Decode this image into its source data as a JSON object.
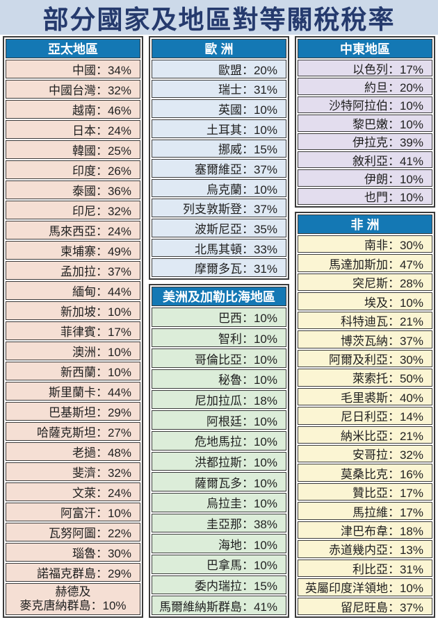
{
  "title": "部分國家及地區對等關稅稅率",
  "colors": {
    "title_bg": "#ccd9e9",
    "title_text": "#253a6d",
    "header_bg": "#1478b4",
    "header_text": "#ffffff",
    "row_text": "#1f1f1f",
    "border": "#3a3a3a"
  },
  "chart_data": {
    "type": "table",
    "title": "部分國家及地區對等關稅稅率",
    "value_unit": "%",
    "value_separator": "：",
    "sections": [
      {
        "id": "asia-pacific",
        "name": "亞太地區",
        "column": 0,
        "row_bg": "#f5dfd4",
        "entries": [
          [
            "中國",
            34
          ],
          [
            "中國台灣",
            32
          ],
          [
            "越南",
            46
          ],
          [
            "日本",
            24
          ],
          [
            "韓國",
            25
          ],
          [
            "印度",
            26
          ],
          [
            "泰國",
            36
          ],
          [
            "印尼",
            32
          ],
          [
            "馬來西亞",
            24
          ],
          [
            "柬埔寨",
            49
          ],
          [
            "孟加拉",
            37
          ],
          [
            "緬甸",
            44
          ],
          [
            "新加坡",
            10
          ],
          [
            "菲律賓",
            17
          ],
          [
            "澳洲",
            10
          ],
          [
            "新西蘭",
            10
          ],
          [
            "斯里蘭卡",
            44
          ],
          [
            "巴基斯坦",
            29
          ],
          [
            "哈薩克斯坦",
            27
          ],
          [
            "老撾",
            48
          ],
          [
            "斐濟",
            32
          ],
          [
            "文萊",
            24
          ],
          [
            "阿富汗",
            10
          ],
          [
            "瓦努阿圖",
            22
          ],
          [
            "瑙魯",
            30
          ],
          [
            "諾福克群島",
            29
          ],
          [
            "赫德及\n麥克唐納群島",
            10
          ]
        ]
      },
      {
        "id": "europe",
        "name": "歐 洲",
        "column": 1,
        "row_bg": "#dfe9f4",
        "entries": [
          [
            "歐盟",
            20
          ],
          [
            "瑞士",
            31
          ],
          [
            "英國",
            10
          ],
          [
            "土耳其",
            10
          ],
          [
            "挪威",
            15
          ],
          [
            "塞爾維亞",
            37
          ],
          [
            "烏克蘭",
            10
          ],
          [
            "列支敦斯登",
            37
          ],
          [
            "波斯尼亞",
            35
          ],
          [
            "北馬其頓",
            33
          ],
          [
            "摩爾多瓦",
            31
          ]
        ]
      },
      {
        "id": "americas-caribbean",
        "name": "美洲及加勒比海地區",
        "column": 1,
        "row_bg": "#dcedd9",
        "entries": [
          [
            "巴西",
            10
          ],
          [
            "智利",
            10
          ],
          [
            "哥倫比亞",
            10
          ],
          [
            "秘魯",
            10
          ],
          [
            "尼加拉瓜",
            18
          ],
          [
            "阿根廷",
            10
          ],
          [
            "危地馬拉",
            10
          ],
          [
            "洪都拉斯",
            10
          ],
          [
            "薩爾瓦多",
            10
          ],
          [
            "烏拉圭",
            10
          ],
          [
            "圭亞那",
            38
          ],
          [
            "海地",
            10
          ],
          [
            "巴拿馬",
            10
          ],
          [
            "委内瑞拉",
            15
          ],
          [
            "馬爾維納斯群島",
            41
          ]
        ]
      },
      {
        "id": "middle-east",
        "name": "中東地區",
        "column": 2,
        "row_bg": "#e3ddee",
        "entries": [
          [
            "以色列",
            17
          ],
          [
            "約旦",
            20
          ],
          [
            "沙特阿拉伯",
            10
          ],
          [
            "黎巴嫩",
            10
          ],
          [
            "伊拉克",
            39
          ],
          [
            "敘利亞",
            41
          ],
          [
            "伊朗",
            10
          ],
          [
            "也門",
            10
          ]
        ]
      },
      {
        "id": "africa",
        "name": "非 洲",
        "column": 2,
        "row_bg": "#fbf5d3",
        "entries": [
          [
            "南非",
            30
          ],
          [
            "馬達加斯加",
            47
          ],
          [
            "突尼斯",
            28
          ],
          [
            "埃及",
            10
          ],
          [
            "科特迪瓦",
            21
          ],
          [
            "博茨瓦納",
            37
          ],
          [
            "阿爾及利亞",
            30
          ],
          [
            "萊索托",
            50
          ],
          [
            "毛里裘斯",
            40
          ],
          [
            "尼日利亞",
            14
          ],
          [
            "納米比亞",
            21
          ],
          [
            "安哥拉",
            32
          ],
          [
            "莫桑比克",
            16
          ],
          [
            "贊比亞",
            17
          ],
          [
            "馬拉維",
            17
          ],
          [
            "津巴布韋",
            18
          ],
          [
            "赤道幾内亞",
            13
          ],
          [
            "利比亞",
            31
          ],
          [
            "英屬印度洋領地",
            10
          ],
          [
            "留尼旺島",
            37
          ]
        ]
      }
    ]
  }
}
